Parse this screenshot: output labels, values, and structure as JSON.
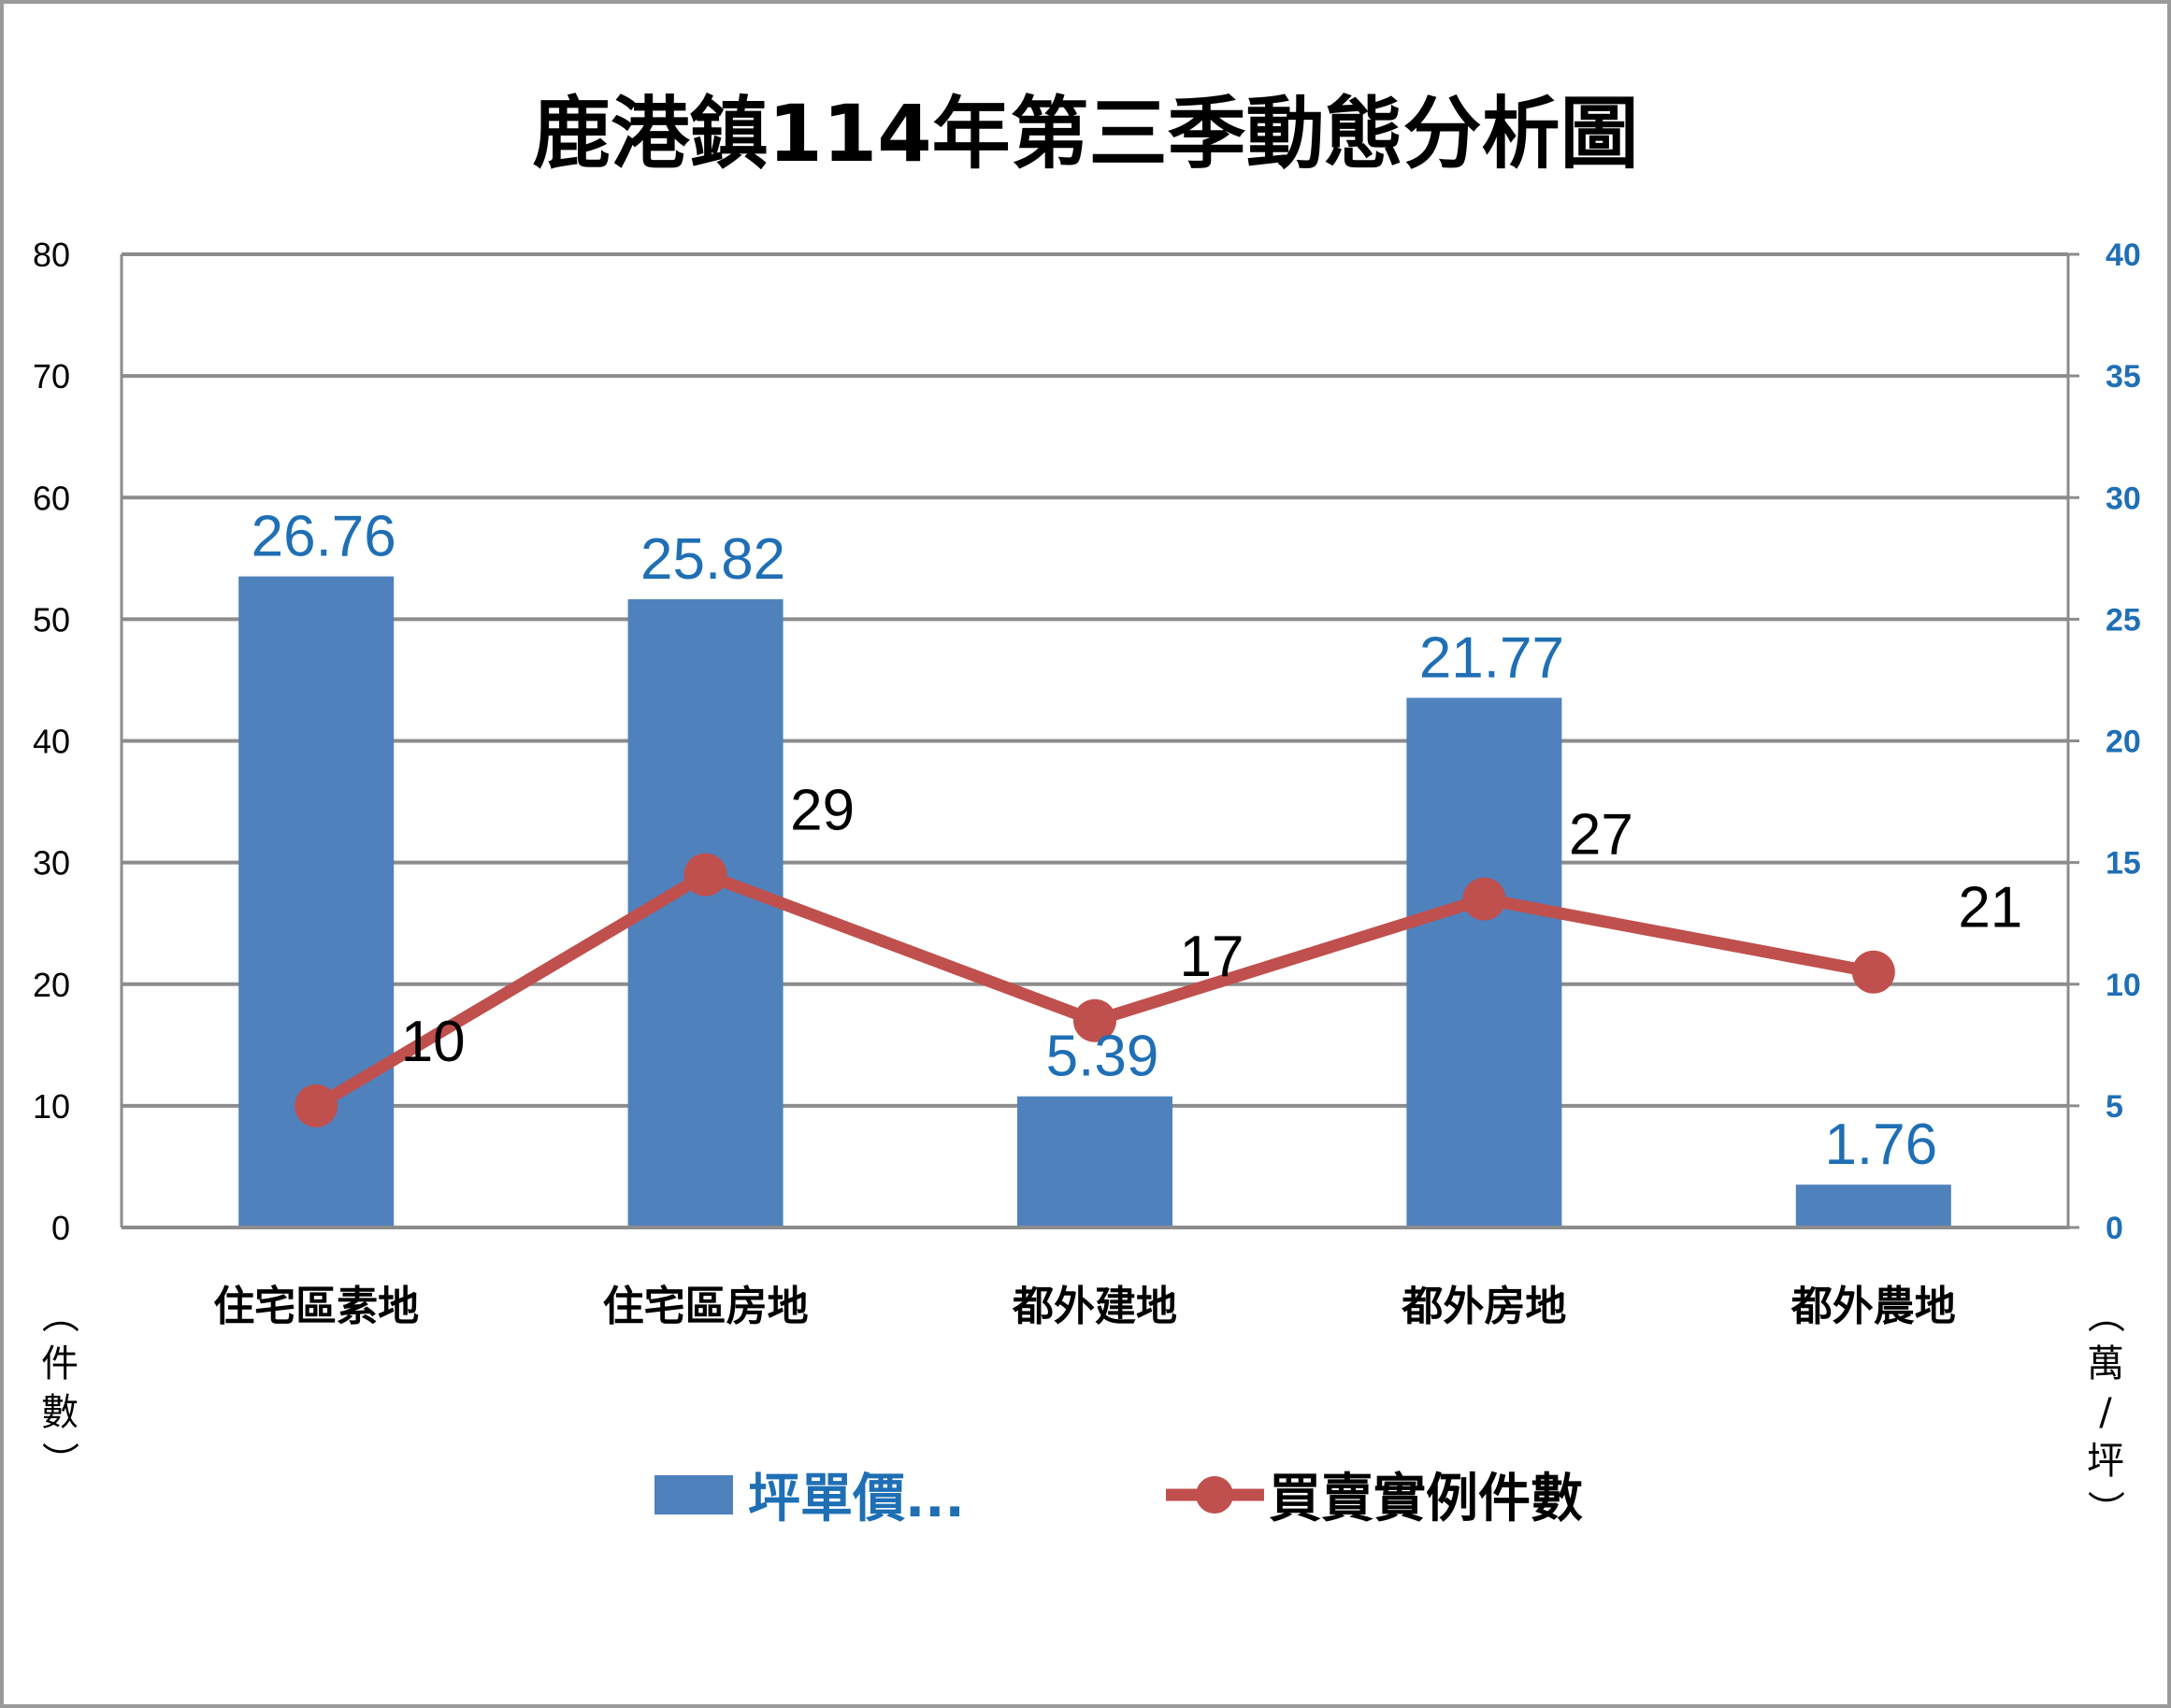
{
  "chart_data": {
    "type": "bar",
    "title": "鹿港鎮114年第三季動態分析圖",
    "categories": [
      "住宅區素地",
      "住宅區房地",
      "都外建地",
      "都外房地",
      "都外農地"
    ],
    "series": [
      {
        "name": "坪單價...",
        "type": "bar",
        "axis": "right",
        "values": [
          26.76,
          25.82,
          5.39,
          21.77,
          1.76
        ],
        "labels": [
          "26.76",
          "25.82",
          "5.39",
          "21.77",
          "1.76"
        ],
        "color": "#4F81BD"
      },
      {
        "name": "買賣實例件數",
        "type": "line",
        "axis": "left",
        "values": [
          10,
          29,
          17,
          27,
          21
        ],
        "labels": [
          "10",
          "29",
          "17",
          "27",
          "21"
        ],
        "color": "#C0504D"
      }
    ],
    "y_left": {
      "label": "（件數）",
      "ylim": [
        0,
        80
      ],
      "ticks": [
        "0",
        "10",
        "20",
        "30",
        "40",
        "50",
        "60",
        "70",
        "80"
      ]
    },
    "y_right": {
      "label": "（萬/坪）",
      "ylim": [
        0,
        40
      ],
      "ticks": [
        "0",
        "5",
        "10",
        "15",
        "20",
        "25",
        "30",
        "35",
        "40"
      ]
    },
    "grid": true,
    "legend": "bottom",
    "colors": {
      "bar_label": "#1F6FB5",
      "right_ticks": "#1F6FB5",
      "grid": "#8C8C8C"
    }
  }
}
